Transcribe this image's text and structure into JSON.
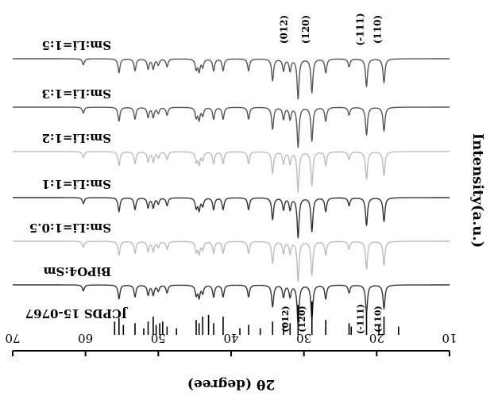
{
  "chart_data": {
    "type": "line",
    "title": "",
    "xlabel": "2θ (degree)",
    "ylabel": "Intensity(a.u.)",
    "xlim": [
      10,
      70
    ],
    "x_reversed": true,
    "image_rotated_180": true,
    "xticks": [
      10,
      20,
      30,
      40,
      50,
      60,
      70
    ],
    "grid": false,
    "legend": "none",
    "series": [
      {
        "name": "Sm:Li=1:5",
        "color": "#555555",
        "peaks": [
          [
            19.0,
            0.6
          ],
          [
            21.4,
            0.7
          ],
          [
            23.8,
            0.2
          ],
          [
            27.0,
            0.35
          ],
          [
            28.9,
            0.85
          ],
          [
            30.8,
            1.0
          ],
          [
            31.9,
            0.3
          ],
          [
            32.8,
            0.3
          ],
          [
            34.3,
            0.55
          ],
          [
            37.6,
            0.3
          ],
          [
            41.1,
            0.3
          ],
          [
            42.4,
            0.3
          ],
          [
            43.9,
            0.2
          ],
          [
            44.4,
            0.3
          ],
          [
            44.8,
            0.25
          ],
          [
            48.8,
            0.2
          ],
          [
            50.0,
            0.15
          ],
          [
            50.7,
            0.25
          ],
          [
            51.4,
            0.25
          ],
          [
            53.2,
            0.3
          ],
          [
            55.4,
            0.35
          ],
          [
            60.3,
            0.15
          ]
        ]
      },
      {
        "name": "Sm:Li=1:3",
        "color": "#555555",
        "peaks": [
          [
            19.0,
            0.6
          ],
          [
            21.4,
            0.7
          ],
          [
            23.8,
            0.2
          ],
          [
            27.0,
            0.35
          ],
          [
            28.9,
            0.85
          ],
          [
            30.8,
            1.0
          ],
          [
            31.9,
            0.3
          ],
          [
            32.8,
            0.3
          ],
          [
            34.3,
            0.55
          ],
          [
            37.6,
            0.3
          ],
          [
            41.1,
            0.3
          ],
          [
            42.4,
            0.3
          ],
          [
            43.9,
            0.2
          ],
          [
            44.4,
            0.3
          ],
          [
            44.8,
            0.25
          ],
          [
            48.8,
            0.2
          ],
          [
            50.0,
            0.15
          ],
          [
            50.7,
            0.25
          ],
          [
            51.4,
            0.25
          ],
          [
            53.2,
            0.3
          ],
          [
            55.4,
            0.35
          ],
          [
            60.3,
            0.15
          ]
        ]
      },
      {
        "name": "Sm:Li=1:2",
        "color": "#bdbdbd",
        "peaks": [
          [
            19.0,
            0.6
          ],
          [
            21.4,
            0.7
          ],
          [
            23.8,
            0.2
          ],
          [
            27.0,
            0.35
          ],
          [
            28.9,
            0.85
          ],
          [
            30.8,
            1.0
          ],
          [
            31.9,
            0.3
          ],
          [
            32.8,
            0.3
          ],
          [
            34.3,
            0.55
          ],
          [
            37.6,
            0.3
          ],
          [
            41.1,
            0.3
          ],
          [
            42.4,
            0.3
          ],
          [
            43.9,
            0.2
          ],
          [
            44.4,
            0.3
          ],
          [
            44.8,
            0.25
          ],
          [
            48.8,
            0.2
          ],
          [
            50.0,
            0.15
          ],
          [
            50.7,
            0.25
          ],
          [
            51.4,
            0.25
          ],
          [
            53.2,
            0.3
          ],
          [
            55.4,
            0.35
          ],
          [
            60.3,
            0.15
          ]
        ]
      },
      {
        "name": "Sm:Li=1:1",
        "color": "#333333",
        "peaks": [
          [
            19.0,
            0.6
          ],
          [
            21.4,
            0.7
          ],
          [
            23.8,
            0.2
          ],
          [
            27.0,
            0.35
          ],
          [
            28.9,
            0.85
          ],
          [
            30.8,
            1.0
          ],
          [
            31.9,
            0.3
          ],
          [
            32.8,
            0.3
          ],
          [
            34.3,
            0.55
          ],
          [
            37.6,
            0.3
          ],
          [
            41.1,
            0.3
          ],
          [
            42.4,
            0.3
          ],
          [
            43.9,
            0.2
          ],
          [
            44.4,
            0.3
          ],
          [
            44.8,
            0.25
          ],
          [
            48.8,
            0.2
          ],
          [
            50.0,
            0.15
          ],
          [
            50.7,
            0.25
          ],
          [
            51.4,
            0.25
          ],
          [
            53.2,
            0.3
          ],
          [
            55.4,
            0.35
          ],
          [
            60.3,
            0.15
          ]
        ]
      },
      {
        "name": "Sm:Li=1:0.5",
        "color": "#bdbdbd",
        "peaks": [
          [
            19.0,
            0.6
          ],
          [
            21.4,
            0.7
          ],
          [
            23.8,
            0.2
          ],
          [
            27.0,
            0.35
          ],
          [
            28.9,
            0.85
          ],
          [
            30.8,
            1.0
          ],
          [
            31.9,
            0.3
          ],
          [
            32.8,
            0.3
          ],
          [
            34.3,
            0.55
          ],
          [
            37.6,
            0.3
          ],
          [
            41.1,
            0.3
          ],
          [
            42.4,
            0.3
          ],
          [
            43.9,
            0.2
          ],
          [
            44.4,
            0.3
          ],
          [
            44.8,
            0.25
          ],
          [
            48.8,
            0.2
          ],
          [
            50.0,
            0.15
          ],
          [
            50.7,
            0.25
          ],
          [
            51.4,
            0.25
          ],
          [
            53.2,
            0.3
          ],
          [
            55.4,
            0.35
          ],
          [
            60.3,
            0.15
          ]
        ]
      },
      {
        "name": "BiPO4:Sm",
        "color": "#333333",
        "peaks": [
          [
            19.0,
            0.6
          ],
          [
            21.4,
            0.7
          ],
          [
            23.8,
            0.2
          ],
          [
            27.0,
            0.35
          ],
          [
            28.9,
            0.85
          ],
          [
            30.8,
            1.0
          ],
          [
            31.9,
            0.3
          ],
          [
            32.8,
            0.3
          ],
          [
            34.3,
            0.55
          ],
          [
            37.6,
            0.3
          ],
          [
            41.1,
            0.3
          ],
          [
            42.4,
            0.3
          ],
          [
            43.9,
            0.2
          ],
          [
            44.4,
            0.3
          ],
          [
            44.8,
            0.25
          ],
          [
            48.8,
            0.2
          ],
          [
            50.0,
            0.15
          ],
          [
            50.7,
            0.25
          ],
          [
            51.4,
            0.25
          ],
          [
            53.2,
            0.3
          ],
          [
            55.4,
            0.35
          ],
          [
            60.3,
            0.15
          ]
        ]
      }
    ],
    "reference": {
      "name": "JCPDS 15-0767",
      "lines": [
        [
          17.0,
          0.25
        ],
        [
          19.0,
          0.55
        ],
        [
          19.7,
          0.3
        ],
        [
          21.4,
          0.7
        ],
        [
          23.5,
          0.25
        ],
        [
          23.8,
          0.35
        ],
        [
          27.0,
          0.45
        ],
        [
          28.9,
          1.0
        ],
        [
          30.8,
          0.9
        ],
        [
          31.9,
          0.35
        ],
        [
          32.8,
          0.3
        ],
        [
          34.3,
          0.4
        ],
        [
          36.0,
          0.2
        ],
        [
          37.6,
          0.3
        ],
        [
          38.8,
          0.2
        ],
        [
          41.1,
          0.55
        ],
        [
          42.4,
          0.35
        ],
        [
          43.1,
          0.6
        ],
        [
          43.9,
          0.55
        ],
        [
          44.4,
          0.35
        ],
        [
          44.8,
          0.45
        ],
        [
          47.5,
          0.2
        ],
        [
          48.8,
          0.25
        ],
        [
          49.4,
          0.4
        ],
        [
          49.8,
          0.35
        ],
        [
          50.3,
          0.3
        ],
        [
          50.7,
          0.55
        ],
        [
          51.4,
          0.4
        ],
        [
          52.0,
          0.2
        ],
        [
          53.2,
          0.35
        ],
        [
          54.8,
          0.3
        ],
        [
          55.4,
          0.5
        ],
        [
          56.0,
          0.4
        ]
      ]
    },
    "annotations_top": [
      {
        "label": "(110)",
        "x": 19.0
      },
      {
        "label": "(-111)",
        "x": 21.4
      },
      {
        "label": "(120)",
        "x": 28.9
      },
      {
        "label": "(012)",
        "x": 31.9
      }
    ],
    "annotations_ref": [
      {
        "label": "(110)",
        "x": 19.0
      },
      {
        "label": "(-111)",
        "x": 21.4
      },
      {
        "label": "(120)",
        "x": 29.4
      },
      {
        "label": "(012)",
        "x": 31.7
      }
    ]
  }
}
